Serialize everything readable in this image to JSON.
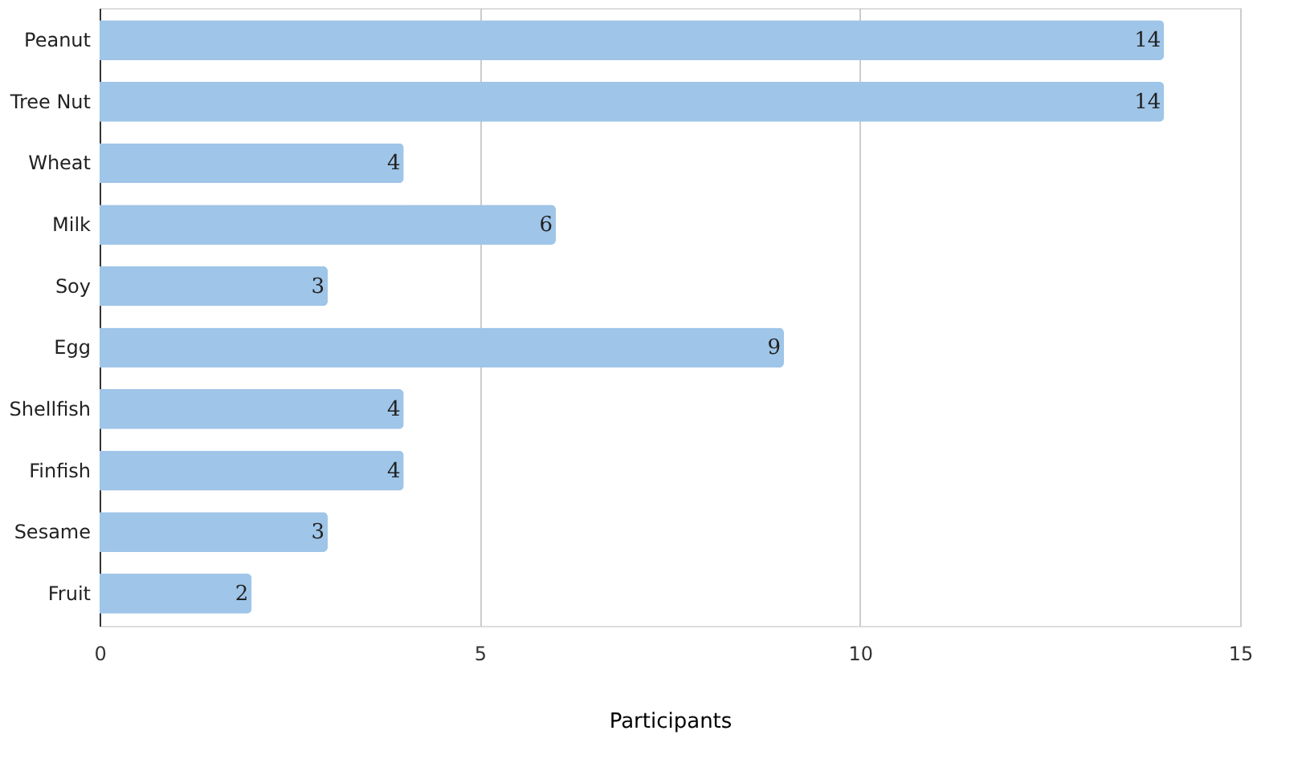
{
  "chart_data": {
    "type": "bar",
    "orientation": "horizontal",
    "categories": [
      "Peanut",
      "Tree Nut",
      "Wheat",
      "Milk",
      "Soy",
      "Egg",
      "Shellfish",
      "Finfish",
      "Sesame",
      "Fruit"
    ],
    "values": [
      14,
      14,
      4,
      6,
      3,
      9,
      4,
      4,
      3,
      2
    ],
    "color": "#9fc5e8",
    "xlabel": "Participants",
    "xlim": [
      0,
      15
    ],
    "xticks": [
      0,
      5,
      10,
      15
    ],
    "grid": "x",
    "data_labels": true
  }
}
